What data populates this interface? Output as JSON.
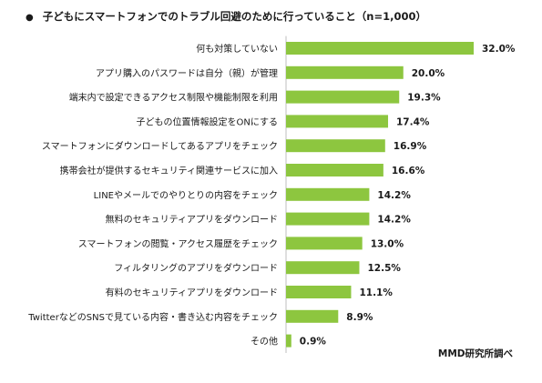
{
  "title": "子どもにスマートフォンでのトラブル回避のために行っていること（n=1,000）",
  "title_bullet": "●",
  "source": "MMD研究所調べ",
  "colors": {
    "bar": "#8dc63f",
    "axis": "#bfbfbf"
  },
  "chart_data": {
    "type": "bar",
    "orientation": "horizontal",
    "title": "子どもにスマートフォンでのトラブル回避のために行っていること（n=1,000）",
    "categories": [
      "何も対策していない",
      "アプリ購入のパスワードは自分（親）が管理",
      "端末内で設定できるアクセス制限や機能制限を利用",
      "子どもの位置情報設定をONにする",
      "スマートフォンにダウンロードしてあるアプリをチェック",
      "携帯会社が提供するセキュリティ関連サービスに加入",
      "LINEやメールでのやりとりの内容をチェック",
      "無料のセキュリティアプリをダウンロード",
      "スマートフォンの閲覧・アクセス履歴をチェック",
      "フィルタリングのアプリをダウンロード",
      "有料のセキュリティアプリをダウンロード",
      "TwitterなどのSNSで見ている内容・書き込む内容をチェック",
      "その他"
    ],
    "values": [
      32.0,
      20.0,
      19.3,
      17.4,
      16.9,
      16.6,
      14.2,
      14.2,
      13.0,
      12.5,
      11.1,
      8.9,
      0.9
    ],
    "value_labels": [
      "32.0%",
      "20.0%",
      "19.3%",
      "17.4%",
      "16.9%",
      "16.6%",
      "14.2%",
      "14.2%",
      "13.0%",
      "12.5%",
      "11.1%",
      "8.9%",
      "0.9%"
    ],
    "xlim": [
      0,
      32.0
    ],
    "grid": false,
    "legend": "none"
  }
}
